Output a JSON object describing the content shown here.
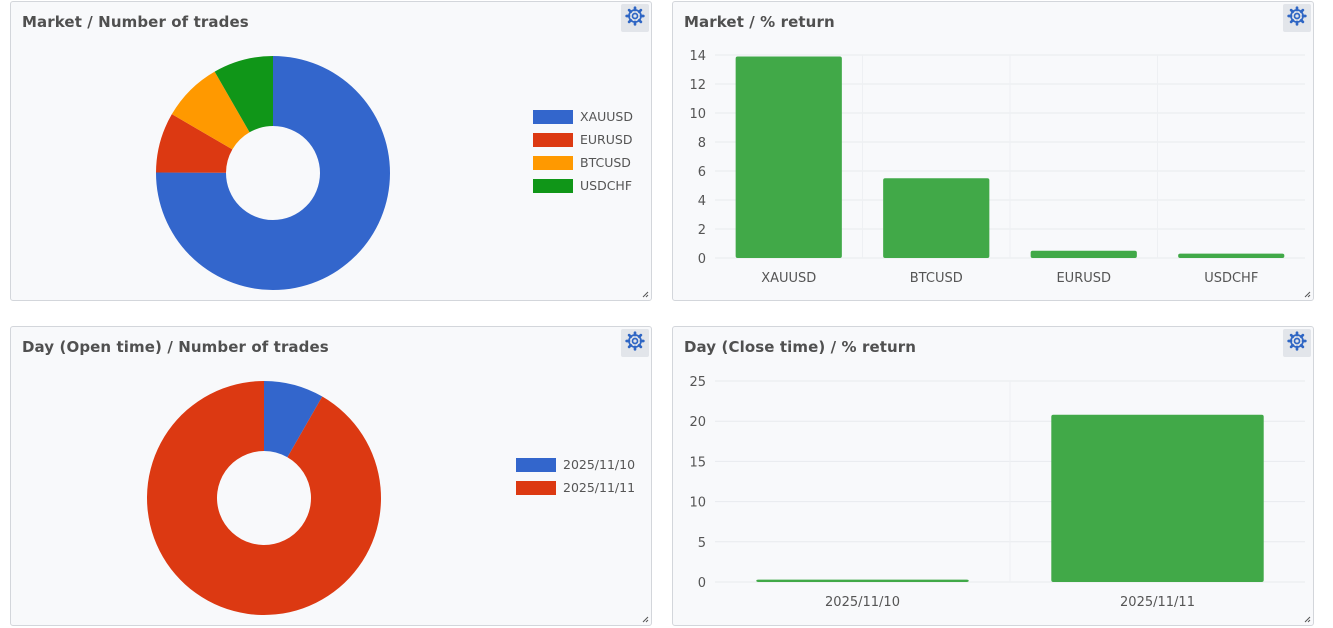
{
  "panels": [
    {
      "title": "Market / Number of trades",
      "settings_icon": "gear-icon"
    },
    {
      "title": "Market / % return",
      "settings_icon": "gear-icon"
    },
    {
      "title": "Day (Open time) / Number of trades",
      "settings_icon": "gear-icon"
    },
    {
      "title": "Day (Close time) / % return",
      "settings_icon": "gear-icon"
    }
  ],
  "colors": {
    "blue": "#3366cc",
    "red": "#dc3912",
    "orange": "#ff9900",
    "green": "#109618",
    "bar_green": "#41a948",
    "gear": "#2f66c4"
  },
  "chart_data": [
    {
      "type": "pie",
      "title": "Market / Number of trades",
      "donut": true,
      "categories": [
        "XAUUSD",
        "EURUSD",
        "BTCUSD",
        "USDCHF"
      ],
      "values": [
        75,
        8.3,
        8.3,
        8.3
      ],
      "colors": [
        "#3366cc",
        "#dc3912",
        "#ff9900",
        "#109618"
      ],
      "legend": "right"
    },
    {
      "type": "bar",
      "title": "Market / % return",
      "categories": [
        "XAUUSD",
        "BTCUSD",
        "EURUSD",
        "USDCHF"
      ],
      "values": [
        13.9,
        5.5,
        0.5,
        0.3
      ],
      "yticks": [
        0,
        2,
        4,
        6,
        8,
        10,
        12,
        14
      ],
      "ylim": [
        0,
        14
      ],
      "grid": true,
      "color": "#41a948"
    },
    {
      "type": "pie",
      "title": "Day (Open time) / Number of trades",
      "donut": true,
      "categories": [
        "2025/11/10",
        "2025/11/11"
      ],
      "values": [
        8.3,
        91.7
      ],
      "colors": [
        "#3366cc",
        "#dc3912"
      ],
      "legend": "right"
    },
    {
      "type": "bar",
      "title": "Day (Close time) / % return",
      "categories": [
        "2025/11/10",
        "2025/11/11"
      ],
      "values": [
        0.3,
        20.8
      ],
      "yticks": [
        0,
        5,
        10,
        15,
        20,
        25
      ],
      "ylim": [
        0,
        25
      ],
      "grid": true,
      "color": "#41a948"
    }
  ]
}
